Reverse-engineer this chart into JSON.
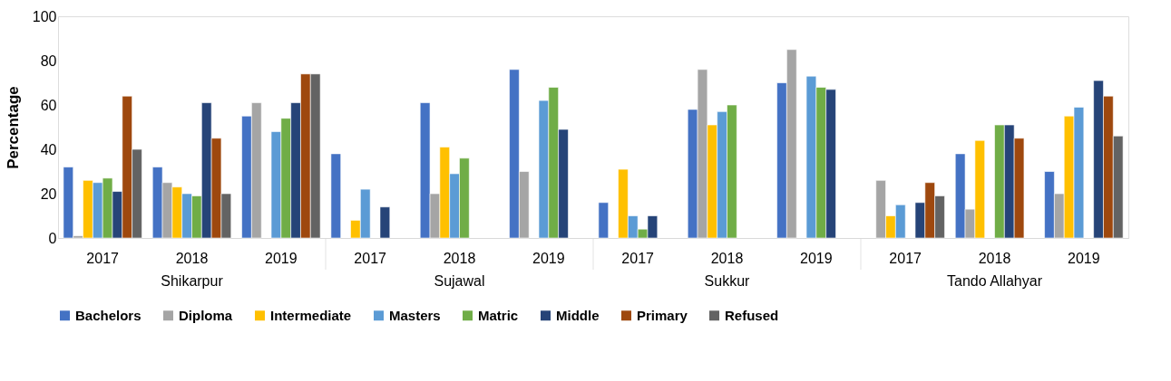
{
  "chart_data": {
    "type": "bar",
    "ylabel": "Percentage",
    "categories": [
      "2017",
      "2018",
      "2019",
      "2017",
      "2018",
      "2019",
      "2017",
      "2018",
      "2019",
      "2017",
      "2018",
      "2019"
    ],
    "annotations": [
      "Shikarpur",
      "Sujawal",
      "Sukkur",
      "Tando Allahyar"
    ],
    "series": [
      {
        "name": "Bachelors",
        "color": "#4472c4",
        "values": [
          32,
          32,
          55,
          38,
          61,
          76,
          16,
          58,
          70,
          null,
          38,
          30
        ]
      },
      {
        "name": "Diploma",
        "color": "#a5a5a5",
        "values": [
          1,
          25,
          61,
          null,
          20,
          30,
          null,
          76,
          85,
          26,
          13,
          20
        ]
      },
      {
        "name": "Intermediate",
        "color": "#ffc000",
        "values": [
          26,
          23,
          null,
          8,
          41,
          null,
          31,
          51,
          null,
          10,
          44,
          55
        ]
      },
      {
        "name": "Masters",
        "color": "#5b9bd5",
        "values": [
          25,
          20,
          48,
          22,
          29,
          62,
          10,
          57,
          73,
          15,
          null,
          59
        ]
      },
      {
        "name": "Matric",
        "color": "#70ad47",
        "values": [
          27,
          19,
          54,
          null,
          36,
          68,
          4,
          60,
          68,
          null,
          51,
          null
        ]
      },
      {
        "name": "Middle",
        "color": "#264478",
        "values": [
          21,
          61,
          61,
          14,
          null,
          49,
          10,
          null,
          67,
          16,
          51,
          71
        ]
      },
      {
        "name": "Primary",
        "color": "#9e480e",
        "values": [
          64,
          45,
          74,
          null,
          null,
          null,
          null,
          null,
          null,
          25,
          45,
          64
        ]
      },
      {
        "name": "Refused",
        "color": "#636363",
        "values": [
          40,
          20,
          74,
          null,
          null,
          null,
          null,
          null,
          null,
          19,
          null,
          46
        ]
      }
    ],
    "ylim": [
      0,
      100
    ],
    "yticks": [
      0,
      20,
      40,
      60,
      80,
      100
    ],
    "grid": false,
    "legend": "bottom"
  }
}
